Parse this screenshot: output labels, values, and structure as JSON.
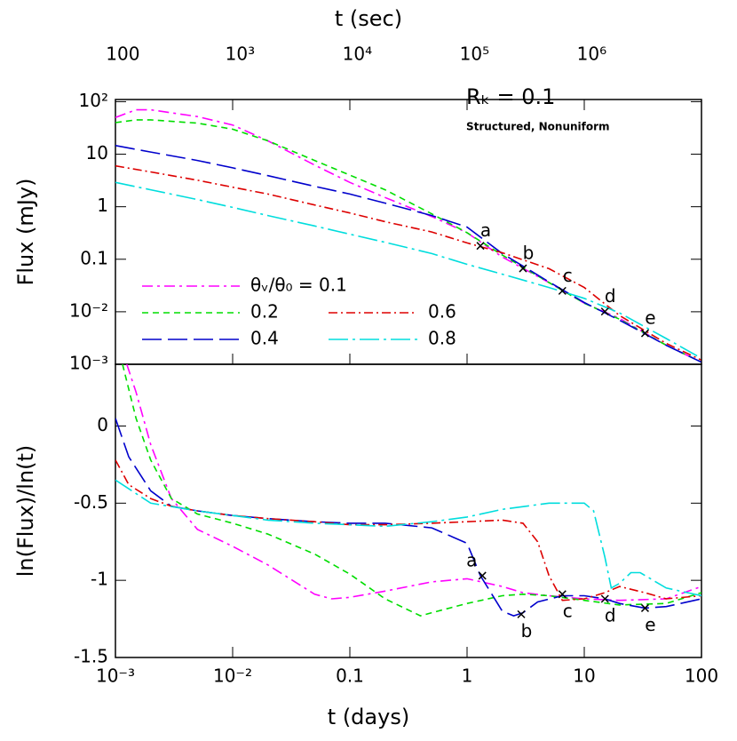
{
  "chart_data": [
    {
      "type": "line",
      "ylabel": "Flux (mJy)",
      "x2label": "t (sec)",
      "yscale": "log",
      "xscale": "log",
      "xlim": [
        0.001,
        100
      ],
      "ylim": [
        0.001,
        110
      ],
      "yticks": [
        {
          "value": 0.001,
          "label": "10⁻³"
        },
        {
          "value": 0.01,
          "label": "10⁻²"
        },
        0.1,
        1,
        10,
        {
          "value": 100,
          "label": "10²"
        }
      ],
      "x2lim": [
        86.4,
        8640000
      ],
      "x2ticks": [
        100,
        {
          "value": 1000,
          "label": "10³"
        },
        {
          "value": 10000,
          "label": "10⁴"
        },
        {
          "value": 100000,
          "label": "10⁵"
        },
        {
          "value": 1000000,
          "label": "10⁶"
        }
      ],
      "annotations": [
        "Rₖ = 0.1",
        "Structured, Nonuniform"
      ],
      "series": [
        {
          "name": "θᵥ/θ₀ = 0.1",
          "color": "#ff00ff",
          "x": [
            0.001,
            0.0015,
            0.002,
            0.005,
            0.01,
            0.02,
            0.05,
            0.1,
            0.2,
            0.5,
            1,
            2,
            5,
            10,
            20,
            50,
            100
          ],
          "values": [
            50,
            70,
            70,
            52,
            36,
            18,
            6.2,
            2.9,
            1.5,
            0.65,
            0.32,
            0.11,
            0.036,
            0.0146,
            0.0075,
            0.0023,
            0.0011
          ]
        },
        {
          "name": "0.2",
          "color": "#00dd00",
          "x": [
            0.001,
            0.0015,
            0.002,
            0.005,
            0.01,
            0.02,
            0.05,
            0.1,
            0.2,
            0.5,
            1,
            2,
            5,
            10,
            20,
            50,
            100
          ],
          "values": [
            40,
            45,
            45,
            39,
            30,
            18,
            7.6,
            4.0,
            2.1,
            0.73,
            0.32,
            0.12,
            0.036,
            0.0146,
            0.0072,
            0.0023,
            0.0011
          ]
        },
        {
          "name": "0.4",
          "color": "#0000cc",
          "x": [
            0.001,
            0.002,
            0.005,
            0.01,
            0.02,
            0.05,
            0.1,
            0.2,
            0.5,
            1,
            2,
            5,
            10,
            20,
            50,
            100
          ],
          "values": [
            14.6,
            11,
            7.6,
            5.5,
            3.9,
            2.45,
            1.74,
            1.17,
            0.68,
            0.41,
            0.128,
            0.037,
            0.015,
            0.0069,
            0.0023,
            0.0011
          ]
        },
        {
          "name": "0.6",
          "color": "#dd0000",
          "x": [
            0.001,
            0.002,
            0.005,
            0.01,
            0.02,
            0.05,
            0.1,
            0.2,
            0.5,
            1,
            2,
            5,
            10,
            20,
            50,
            100
          ],
          "values": [
            6.0,
            4.6,
            3.2,
            2.35,
            1.74,
            1.08,
            0.76,
            0.52,
            0.33,
            0.205,
            0.133,
            0.066,
            0.029,
            0.0085,
            0.0025,
            0.0012
          ]
        },
        {
          "name": "0.8",
          "color": "#00dddd",
          "x": [
            0.001,
            0.002,
            0.005,
            0.01,
            0.02,
            0.05,
            0.1,
            0.2,
            0.5,
            1,
            2,
            5,
            10,
            20,
            50,
            100
          ],
          "values": [
            2.9,
            2.1,
            1.37,
            0.97,
            0.68,
            0.43,
            0.3,
            0.21,
            0.128,
            0.08,
            0.052,
            0.029,
            0.018,
            0.0095,
            0.0031,
            0.0013
          ]
        }
      ],
      "markers": {
        "labels": [
          "a",
          "b",
          "c",
          "d",
          "e"
        ],
        "x": [
          1.3,
          3,
          6.5,
          15,
          33
        ],
        "values": [
          0.18,
          0.067,
          0.025,
          0.0101,
          0.0039
        ]
      }
    },
    {
      "type": "line",
      "ylabel": "ln(Flux)/ln(t)",
      "xlabel": "t (days)",
      "xscale": "log",
      "yscale": "linear",
      "xlim": [
        0.001,
        100
      ],
      "ylim": [
        -1.5,
        0.4
      ],
      "xticks": [
        {
          "value": 0.001,
          "label": "10⁻³"
        },
        {
          "value": 0.01,
          "label": "10⁻²"
        },
        0.1,
        1,
        10,
        100
      ],
      "yticks": [
        -1.5,
        -1,
        -0.5,
        0
      ],
      "series": [
        {
          "color": "#ff00ff",
          "x": [
            0.00125,
            0.0015,
            0.002,
            0.003,
            0.005,
            0.01,
            0.02,
            0.05,
            0.07,
            0.1,
            0.2,
            0.5,
            1,
            2,
            3,
            5,
            10,
            20,
            50,
            100
          ],
          "values": [
            0.4,
            0.22,
            -0.12,
            -0.47,
            -0.67,
            -0.78,
            -0.9,
            -1.09,
            -1.12,
            -1.11,
            -1.07,
            -1.01,
            -0.99,
            -1.04,
            -1.08,
            -1.1,
            -1.12,
            -1.13,
            -1.12,
            -1.04
          ]
        },
        {
          "color": "#00dd00",
          "x": [
            0.00115,
            0.0015,
            0.002,
            0.003,
            0.005,
            0.01,
            0.02,
            0.05,
            0.1,
            0.2,
            0.4,
            0.5,
            1,
            2,
            3,
            5,
            10,
            20,
            50,
            100
          ],
          "values": [
            0.4,
            0.05,
            -0.22,
            -0.47,
            -0.57,
            -0.63,
            -0.7,
            -0.83,
            -0.96,
            -1.12,
            -1.23,
            -1.21,
            -1.15,
            -1.1,
            -1.09,
            -1.1,
            -1.13,
            -1.16,
            -1.15,
            -1.08
          ]
        },
        {
          "color": "#0000cc",
          "x": [
            0.001,
            0.0013,
            0.002,
            0.003,
            0.005,
            0.01,
            0.02,
            0.05,
            0.1,
            0.2,
            0.5,
            1,
            1.3,
            2,
            2.5,
            3,
            4,
            6.5,
            10,
            15,
            20,
            33,
            50,
            100
          ],
          "values": [
            0.05,
            -0.2,
            -0.42,
            -0.52,
            -0.55,
            -0.58,
            -0.6,
            -0.62,
            -0.63,
            -0.63,
            -0.66,
            -0.76,
            -0.97,
            -1.2,
            -1.23,
            -1.21,
            -1.14,
            -1.1,
            -1.1,
            -1.12,
            -1.15,
            -1.18,
            -1.17,
            -1.12
          ]
        },
        {
          "color": "#dd0000",
          "x": [
            0.001,
            0.0013,
            0.002,
            0.003,
            0.005,
            0.01,
            0.02,
            0.05,
            0.1,
            0.2,
            0.5,
            1,
            2,
            3,
            4,
            5,
            6.5,
            10,
            15,
            20,
            33,
            50,
            100
          ],
          "values": [
            -0.22,
            -0.38,
            -0.47,
            -0.52,
            -0.55,
            -0.58,
            -0.6,
            -0.62,
            -0.64,
            -0.64,
            -0.63,
            -0.62,
            -0.61,
            -0.63,
            -0.75,
            -0.97,
            -1.13,
            -1.12,
            -1.08,
            -1.04,
            -1.08,
            -1.12,
            -1.1
          ]
        },
        {
          "color": "#00dddd",
          "x": [
            0.001,
            0.002,
            0.005,
            0.01,
            0.02,
            0.05,
            0.1,
            0.2,
            0.5,
            1,
            2,
            5,
            10,
            12,
            15,
            17,
            20,
            25,
            30,
            50,
            100
          ],
          "values": [
            -0.35,
            -0.5,
            -0.55,
            -0.58,
            -0.61,
            -0.63,
            -0.64,
            -0.65,
            -0.62,
            -0.59,
            -0.54,
            -0.5,
            -0.5,
            -0.55,
            -0.85,
            -1.05,
            -1.02,
            -0.95,
            -0.95,
            -1.05,
            -1.1
          ]
        }
      ],
      "markers": {
        "labels": [
          "a",
          "b",
          "c",
          "d",
          "e"
        ],
        "x": [
          1.35,
          2.9,
          6.5,
          15,
          33
        ],
        "values": [
          -0.97,
          -1.22,
          -1.09,
          -1.12,
          -1.18
        ]
      }
    }
  ]
}
